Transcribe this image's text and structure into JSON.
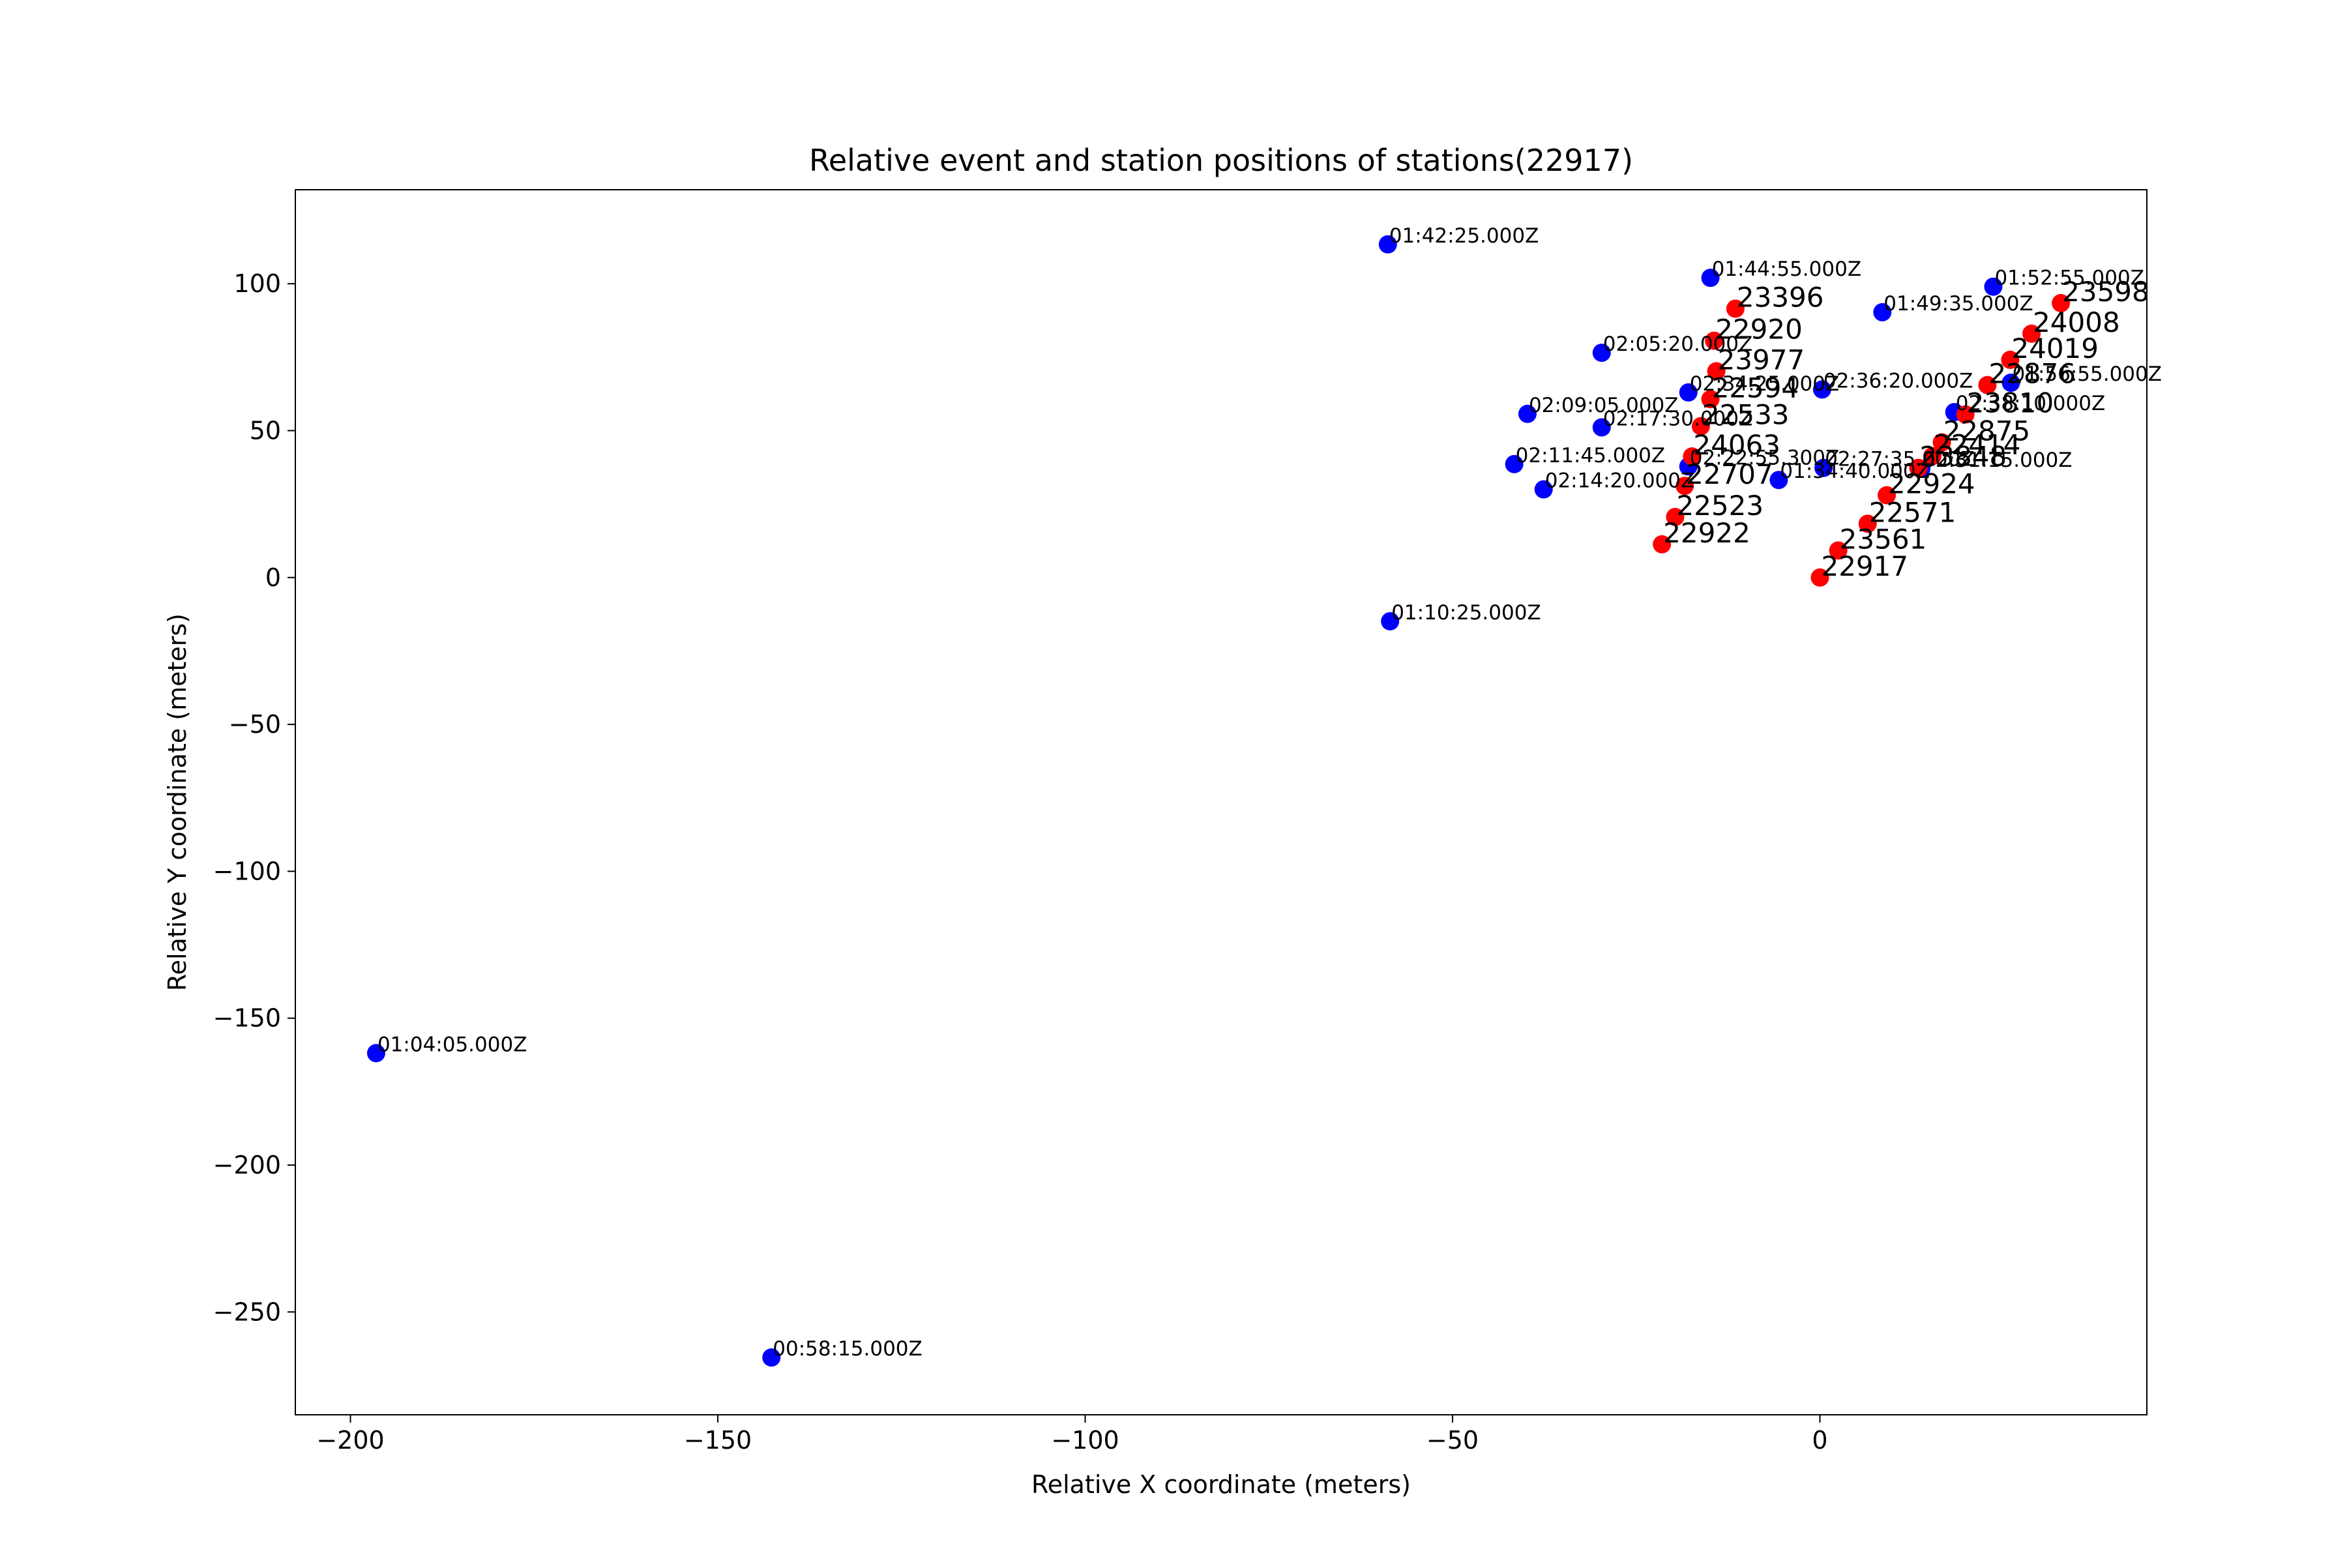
{
  "chart_data": {
    "type": "scatter",
    "title": "Relative event and station positions of stations(22917)",
    "xlabel": "Relative X coordinate (meters)",
    "ylabel": "Relative Y coordinate (meters)",
    "xlim": [
      -207.5,
      44.5
    ],
    "ylim": [
      -285,
      132
    ],
    "xticks": [
      -200,
      -150,
      -100,
      -50,
      0
    ],
    "yticks": [
      100,
      50,
      0,
      -50,
      -100,
      -150,
      -200,
      -250
    ],
    "grid": false,
    "legend": "none",
    "series": [
      {
        "marker_color": "#0000ff",
        "label_size": "small",
        "points": [
          {
            "x": -58.8,
            "y": 113.4,
            "label": "01:42:25.000Z"
          },
          {
            "x": -14.9,
            "y": 102.0,
            "label": "01:44:55.000Z"
          },
          {
            "x": 23.6,
            "y": 99.0,
            "label": "01:52:55.000Z"
          },
          {
            "x": 8.5,
            "y": 90.3,
            "label": "01:49:35.000Z"
          },
          {
            "x": -29.7,
            "y": 76.5,
            "label": "02:05:20.000Z"
          },
          {
            "x": 26.0,
            "y": 66.3,
            "label": "01:56:55.000Z"
          },
          {
            "x": 0.3,
            "y": 64.0,
            "label": "02:36:20.000Z"
          },
          {
            "x": -17.9,
            "y": 63.0,
            "label": "02:34:25.000Z"
          },
          {
            "x": 18.3,
            "y": 56.3,
            "label": "02:38:10.000Z"
          },
          {
            "x": -39.8,
            "y": 55.7,
            "label": "02:09:05.000Z"
          },
          {
            "x": -29.7,
            "y": 51.1,
            "label": "02:17:30.000Z"
          },
          {
            "x": -41.6,
            "y": 38.6,
            "label": "02:11:45.000Z"
          },
          {
            "x": -17.9,
            "y": 37.8,
            "label": "02:22:55.300Z"
          },
          {
            "x": 0.5,
            "y": 37.3,
            "label": "02:27:35.000Z"
          },
          {
            "x": 13.8,
            "y": 37.0,
            "label": "02:31:15.000Z"
          },
          {
            "x": -5.6,
            "y": 33.2,
            "label": "01:34:40.000Z"
          },
          {
            "x": -37.6,
            "y": 30.0,
            "label": "02:14:20.000Z"
          },
          {
            "x": -58.5,
            "y": -14.9,
            "label": "01:10:25.000Z"
          },
          {
            "x": -196.5,
            "y": -161.9,
            "label": "01:04:05.000Z"
          },
          {
            "x": -142.7,
            "y": -265.5,
            "label": "00:58:15.000Z"
          }
        ]
      },
      {
        "marker_color": "#ff0000",
        "label_size": "large",
        "points": [
          {
            "x": 32.8,
            "y": 93.4,
            "label": "23598"
          },
          {
            "x": -11.5,
            "y": 91.5,
            "label": "23396"
          },
          {
            "x": 28.8,
            "y": 83.0,
            "label": "24008"
          },
          {
            "x": -14.4,
            "y": 80.6,
            "label": "22920"
          },
          {
            "x": 25.9,
            "y": 74.1,
            "label": "24019"
          },
          {
            "x": -14.1,
            "y": 70.2,
            "label": "23977"
          },
          {
            "x": 22.8,
            "y": 65.5,
            "label": "22876"
          },
          {
            "x": -14.9,
            "y": 60.7,
            "label": "22594"
          },
          {
            "x": 19.8,
            "y": 55.5,
            "label": "23810"
          },
          {
            "x": -16.2,
            "y": 51.5,
            "label": "22533"
          },
          {
            "x": 16.6,
            "y": 46.0,
            "label": "22875"
          },
          {
            "x": -17.4,
            "y": 41.2,
            "label": "24063"
          },
          {
            "x": 15.3,
            "y": 41.3,
            "label": "22414"
          },
          {
            "x": 13.4,
            "y": 37.3,
            "label": "23848"
          },
          {
            "x": -18.4,
            "y": 31.2,
            "label": "22707"
          },
          {
            "x": 9.1,
            "y": 28.0,
            "label": "22924"
          },
          {
            "x": -19.7,
            "y": 20.6,
            "label": "22523"
          },
          {
            "x": 6.5,
            "y": 18.3,
            "label": "22571"
          },
          {
            "x": -21.5,
            "y": 11.3,
            "label": "22922"
          },
          {
            "x": 2.5,
            "y": 9.2,
            "label": "23561"
          },
          {
            "x": 0.0,
            "y": 0.0,
            "label": "22917"
          }
        ]
      }
    ]
  }
}
